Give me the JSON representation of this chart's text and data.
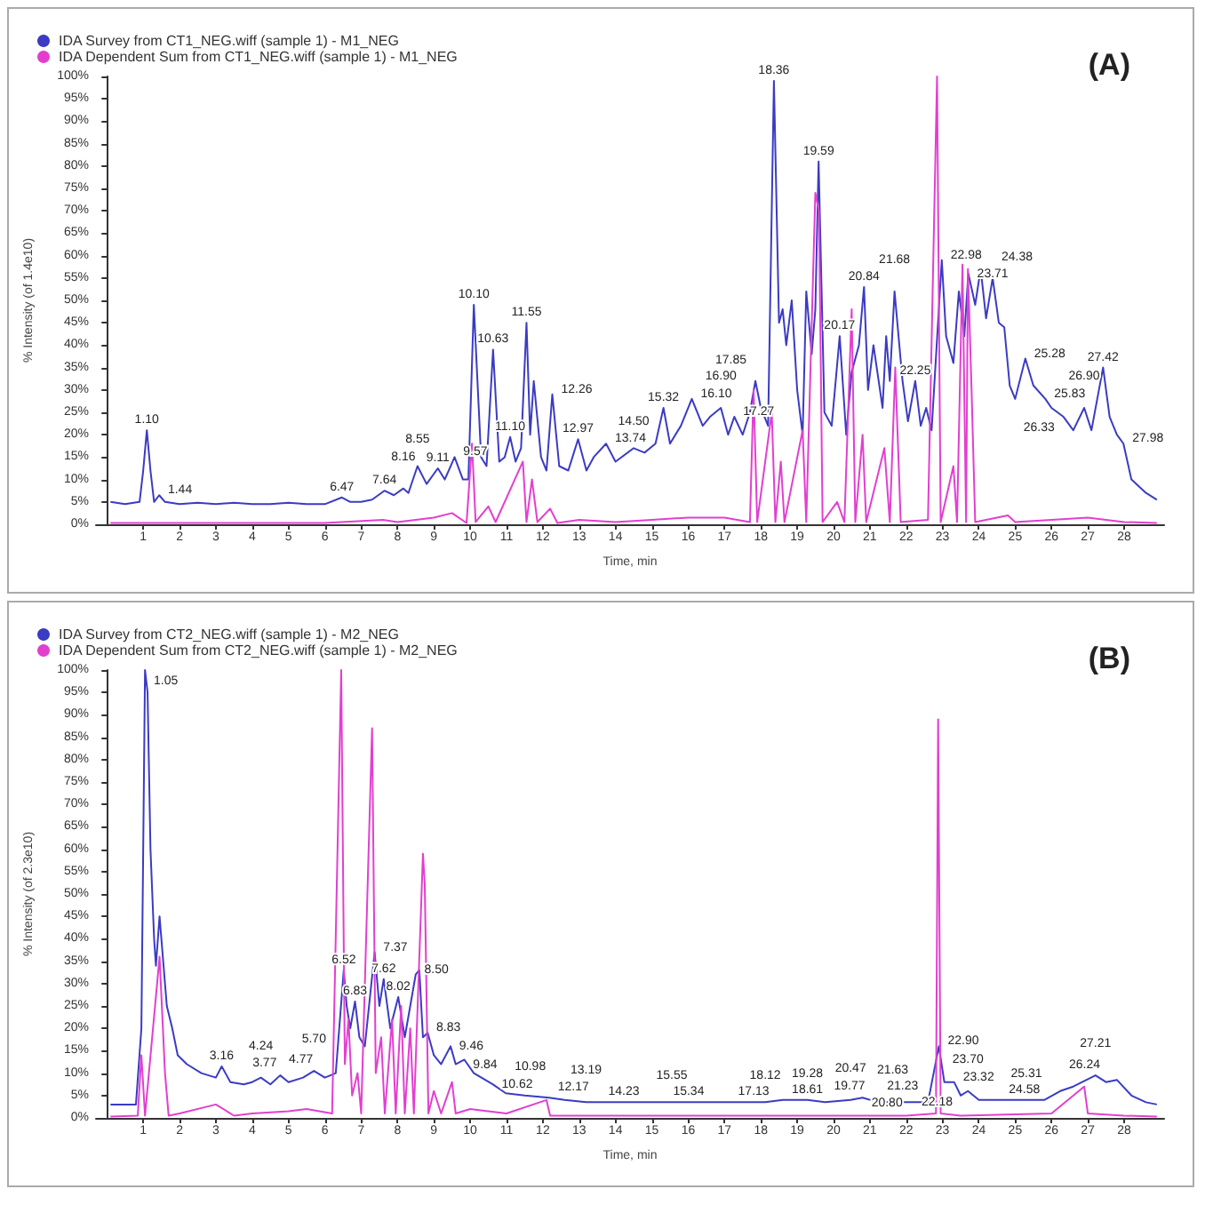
{
  "chart_data": [
    {
      "type": "line",
      "title": "(A)",
      "xlabel": "Time, min",
      "ylabel": "% Intensity (of 1.4e10)",
      "legend": "top left",
      "marker": "none",
      "line_style": "solid",
      "grid": false,
      "xlim": [
        -0.3,
        29.1
      ],
      "xticks": [
        1,
        2,
        3,
        4,
        5,
        6,
        7,
        8,
        9,
        10,
        11,
        12,
        13,
        14,
        15,
        16,
        17,
        18,
        19,
        20,
        21,
        22,
        23,
        24,
        25,
        26,
        27,
        28
      ],
      "ylim": [
        0,
        100
      ],
      "yticks": [
        {
          "value": 0,
          "label": "0%"
        },
        {
          "value": 5,
          "label": "5%"
        },
        {
          "value": 10,
          "label": "10%"
        },
        {
          "value": 15,
          "label": "15%"
        },
        {
          "value": 20,
          "label": "20%"
        },
        {
          "value": 25,
          "label": "25%"
        },
        {
          "value": 30,
          "label": "30%"
        },
        {
          "value": 35,
          "label": "35%"
        },
        {
          "value": 40,
          "label": "40%"
        },
        {
          "value": 45,
          "label": "45%"
        },
        {
          "value": 50,
          "label": "50%"
        },
        {
          "value": 55,
          "label": "55%"
        },
        {
          "value": 60,
          "label": "60%"
        },
        {
          "value": 65,
          "label": "65%"
        },
        {
          "value": 70,
          "label": "70%"
        },
        {
          "value": 75,
          "label": "75%"
        },
        {
          "value": 80,
          "label": "80%"
        },
        {
          "value": 85,
          "label": "85%"
        },
        {
          "value": 90,
          "label": "90%"
        },
        {
          "value": 95,
          "label": "95%"
        },
        {
          "value": 100,
          "label": "100%"
        }
      ],
      "series": [
        {
          "name": "IDA Survey from CT1_NEG.wiff (sample 1) - M1_NEG",
          "color": "#3b3bc4",
          "x": [
            0.1,
            0.5,
            0.9,
            1.0,
            1.1,
            1.2,
            1.3,
            1.44,
            1.6,
            2,
            2.5,
            3,
            3.5,
            4,
            4.5,
            5,
            5.5,
            6,
            6.47,
            6.7,
            7,
            7.3,
            7.64,
            7.9,
            8.16,
            8.3,
            8.55,
            8.8,
            9.11,
            9.3,
            9.57,
            9.8,
            9.95,
            10.1,
            10.3,
            10.45,
            10.63,
            10.8,
            10.95,
            11.1,
            11.25,
            11.4,
            11.55,
            11.65,
            11.75,
            11.95,
            12.1,
            12.26,
            12.45,
            12.7,
            12.97,
            13.2,
            13.4,
            13.74,
            14.0,
            14.5,
            14.8,
            15.1,
            15.32,
            15.5,
            15.8,
            16.1,
            16.4,
            16.6,
            16.9,
            17.1,
            17.27,
            17.5,
            17.7,
            17.85,
            18.0,
            18.2,
            18.36,
            18.5,
            18.6,
            18.7,
            18.85,
            19.0,
            19.15,
            19.25,
            19.4,
            19.5,
            19.59,
            19.75,
            19.95,
            20.17,
            20.35,
            20.5,
            20.7,
            20.84,
            20.95,
            21.1,
            21.35,
            21.45,
            21.55,
            21.68,
            21.9,
            22.05,
            22.25,
            22.4,
            22.55,
            22.7,
            22.98,
            23.1,
            23.3,
            23.45,
            23.6,
            23.71,
            23.9,
            24.05,
            24.2,
            24.38,
            24.55,
            24.7,
            24.85,
            25.0,
            25.28,
            25.5,
            25.83,
            26.0,
            26.33,
            26.6,
            26.9,
            27.1,
            27.42,
            27.6,
            27.8,
            27.98,
            28.2,
            28.6,
            28.9
          ],
          "values": [
            5,
            4.5,
            5,
            12,
            21,
            12,
            5,
            6.5,
            5,
            4.5,
            4.8,
            4.5,
            4.8,
            4.5,
            4.5,
            4.8,
            4.5,
            4.5,
            6,
            5,
            5,
            5.5,
            7.5,
            6.5,
            8,
            7,
            13,
            9,
            12.5,
            10,
            15,
            10,
            10,
            49,
            15,
            13,
            39,
            14,
            15,
            19.5,
            14,
            17,
            45,
            20,
            32,
            15,
            12,
            29,
            13,
            12,
            19,
            12,
            15,
            18,
            14,
            17,
            16,
            18,
            26,
            18,
            22,
            28,
            22,
            24,
            26,
            20,
            24,
            20,
            25,
            32,
            26,
            22,
            99,
            45,
            48,
            40,
            50,
            30,
            20,
            52,
            38,
            48,
            81,
            25,
            22,
            42,
            20,
            34,
            40,
            53,
            30,
            40,
            26,
            42,
            32,
            52,
            32,
            23,
            32,
            22,
            26,
            21,
            59,
            42,
            36,
            52,
            42,
            56,
            49,
            57,
            46,
            55,
            45,
            44,
            31,
            28,
            37,
            31,
            28,
            26,
            24,
            21,
            26,
            21,
            35,
            24,
            20,
            18,
            10,
            7,
            5.5
          ]
        },
        {
          "name": "IDA Dependent Sum from CT1_NEG.wiff (sample 1) - M1_NEG",
          "color": "#e23fd0",
          "x": [
            0.1,
            6,
            7.6,
            8.0,
            9.0,
            9.5,
            9.9,
            10.05,
            10.15,
            10.5,
            10.7,
            11.45,
            11.55,
            11.7,
            11.85,
            12.2,
            12.4,
            13,
            14,
            15,
            16,
            17,
            17.7,
            17.8,
            17.9,
            18.3,
            18.4,
            18.55,
            18.65,
            19.15,
            19.25,
            19.5,
            19.6,
            19.7,
            20.1,
            20.3,
            20.5,
            20.6,
            20.8,
            20.9,
            21.4,
            21.55,
            21.7,
            21.85,
            22.6,
            22.85,
            22.95,
            23.3,
            23.4,
            23.55,
            23.65,
            23.7,
            23.8,
            23.9,
            24.8,
            25,
            26,
            27,
            28,
            28.9
          ],
          "values": [
            0.3,
            0.3,
            1,
            0.5,
            1.5,
            2.5,
            0.3,
            18,
            0.5,
            4,
            0.5,
            14,
            0.5,
            10,
            0.5,
            3.5,
            0.3,
            1,
            0.5,
            1,
            1.5,
            1.5,
            0.5,
            30,
            0.5,
            25,
            0.5,
            14,
            0.5,
            21,
            0.5,
            74,
            70,
            0.5,
            5,
            0.5,
            48,
            0.5,
            20,
            0.5,
            17,
            0.5,
            35,
            0.5,
            1,
            100,
            0.5,
            13,
            0.5,
            58,
            0.5,
            57,
            30,
            0.5,
            2,
            0.5,
            1,
            1.5,
            0.5,
            0.3
          ]
        }
      ],
      "annotations": [
        {
          "text": "1.10",
          "x": 1.1,
          "y": 21
        },
        {
          "text": "1.44",
          "x": 1.44,
          "y": 6.5
        },
        {
          "text": "6.47",
          "x": 6.47,
          "y": 6
        },
        {
          "text": "7.64",
          "x": 7.64,
          "y": 7.5
        },
        {
          "text": "8.16",
          "x": 8.16,
          "y": 8
        },
        {
          "text": "8.55",
          "x": 8.55,
          "y": 13
        },
        {
          "text": "9.11",
          "x": 9.11,
          "y": 12.5
        },
        {
          "text": "9.57",
          "x": 9.57,
          "y": 15
        },
        {
          "text": "10.10",
          "x": 10.1,
          "y": 49
        },
        {
          "text": "10.63",
          "x": 10.63,
          "y": 39
        },
        {
          "text": "11.10",
          "x": 11.1,
          "y": 19.5
        },
        {
          "text": "11.55",
          "x": 11.55,
          "y": 45
        },
        {
          "text": "12.26",
          "x": 12.26,
          "y": 29
        },
        {
          "text": "12.97",
          "x": 12.97,
          "y": 19
        },
        {
          "text": "13.74",
          "x": 13.74,
          "y": 18
        },
        {
          "text": "14.50",
          "x": 14.5,
          "y": 17
        },
        {
          "text": "15.32",
          "x": 15.32,
          "y": 26
        },
        {
          "text": "16.10",
          "x": 16.1,
          "y": 28
        },
        {
          "text": "16.90",
          "x": 16.9,
          "y": 26
        },
        {
          "text": "17.27",
          "x": 17.27,
          "y": 24
        },
        {
          "text": "17.85",
          "x": 17.85,
          "y": 32
        },
        {
          "text": "18.36",
          "x": 18.36,
          "y": 99
        },
        {
          "text": "19.59",
          "x": 19.59,
          "y": 81
        },
        {
          "text": "20.17",
          "x": 20.17,
          "y": 42
        },
        {
          "text": "20.84",
          "x": 20.84,
          "y": 53
        },
        {
          "text": "21.68",
          "x": 21.68,
          "y": 52
        },
        {
          "text": "22.25",
          "x": 22.25,
          "y": 32
        },
        {
          "text": "22.98",
          "x": 22.98,
          "y": 59
        },
        {
          "text": "23.71",
          "x": 23.71,
          "y": 56
        },
        {
          "text": "24.38",
          "x": 24.38,
          "y": 55
        },
        {
          "text": "25.28",
          "x": 25.28,
          "y": 37
        },
        {
          "text": "25.83",
          "x": 25.83,
          "y": 28
        },
        {
          "text": "26.33",
          "x": 26.33,
          "y": 24
        },
        {
          "text": "26.90",
          "x": 26.9,
          "y": 26
        },
        {
          "text": "27.42",
          "x": 27.42,
          "y": 35
        },
        {
          "text": "27.98",
          "x": 27.98,
          "y": 18
        }
      ]
    },
    {
      "type": "line",
      "title": "(B)",
      "xlabel": "Time, min",
      "ylabel": "% Intensity (of 2.3e10)",
      "legend": "top left",
      "marker": "none",
      "line_style": "solid",
      "grid": false,
      "xlim": [
        -0.3,
        29.1
      ],
      "xticks": [
        1,
        2,
        3,
        4,
        5,
        6,
        7,
        8,
        9,
        10,
        11,
        12,
        13,
        14,
        15,
        16,
        17,
        18,
        19,
        20,
        21,
        22,
        23,
        24,
        25,
        26,
        27,
        28
      ],
      "ylim": [
        0,
        100
      ],
      "yticks": [
        {
          "value": 0,
          "label": "0%"
        },
        {
          "value": 5,
          "label": "5%"
        },
        {
          "value": 10,
          "label": "10%"
        },
        {
          "value": 15,
          "label": "15%"
        },
        {
          "value": 20,
          "label": "20%"
        },
        {
          "value": 25,
          "label": "25%"
        },
        {
          "value": 30,
          "label": "30%"
        },
        {
          "value": 35,
          "label": "35%"
        },
        {
          "value": 40,
          "label": "40%"
        },
        {
          "value": 45,
          "label": "45%"
        },
        {
          "value": 50,
          "label": "50%"
        },
        {
          "value": 55,
          "label": "55%"
        },
        {
          "value": 60,
          "label": "60%"
        },
        {
          "value": 65,
          "label": "65%"
        },
        {
          "value": 70,
          "label": "70%"
        },
        {
          "value": 75,
          "label": "75%"
        },
        {
          "value": 80,
          "label": "80%"
        },
        {
          "value": 85,
          "label": "85%"
        },
        {
          "value": 90,
          "label": "90%"
        },
        {
          "value": 95,
          "label": "95%"
        },
        {
          "value": 100,
          "label": "100%"
        }
      ],
      "series": [
        {
          "name": "IDA Survey from CT2_NEG.wiff (sample 1) - M2_NEG",
          "color": "#3b3bc4",
          "x": [
            0.1,
            0.8,
            0.95,
            1.05,
            1.12,
            1.2,
            1.3,
            1.35,
            1.45,
            1.55,
            1.65,
            1.8,
            1.95,
            2.2,
            2.6,
            3.0,
            3.16,
            3.4,
            3.77,
            4.0,
            4.24,
            4.5,
            4.77,
            5.0,
            5.4,
            5.7,
            6.0,
            6.3,
            6.52,
            6.6,
            6.7,
            6.83,
            6.95,
            7.1,
            7.37,
            7.5,
            7.62,
            7.8,
            8.02,
            8.2,
            8.35,
            8.5,
            8.6,
            8.7,
            8.83,
            9.0,
            9.2,
            9.46,
            9.6,
            9.84,
            10.1,
            10.62,
            10.98,
            11.5,
            12.17,
            12.6,
            13.19,
            14.23,
            15.34,
            15.55,
            16,
            17.13,
            18.12,
            18.61,
            19.28,
            19.77,
            20.47,
            20.8,
            21.23,
            21.63,
            22.18,
            22.6,
            22.9,
            23.05,
            23.32,
            23.5,
            23.7,
            24.0,
            24.58,
            25.31,
            25.8,
            26.24,
            26.6,
            27.21,
            27.5,
            27.8,
            28.2,
            28.6,
            28.9
          ],
          "values": [
            3,
            3,
            20,
            100,
            95,
            60,
            40,
            34,
            45,
            35,
            25,
            20,
            14,
            12,
            10,
            9,
            11.5,
            8,
            7.5,
            8,
            9,
            7.5,
            9.5,
            8,
            9,
            10.5,
            9,
            10,
            33,
            25,
            20,
            26,
            18,
            16,
            37,
            25,
            31,
            20,
            27,
            18,
            25,
            32,
            33,
            18,
            19,
            14,
            12,
            16,
            12,
            13,
            10,
            7.5,
            5.5,
            5,
            4.5,
            4,
            3.5,
            3.5,
            3.5,
            3.5,
            3.5,
            3.5,
            3.5,
            4,
            4,
            3.5,
            4,
            4.5,
            3.5,
            3.5,
            3.5,
            3.5,
            16,
            8,
            8,
            5,
            6,
            4,
            4,
            4,
            4,
            6,
            7,
            9.5,
            8,
            8.5,
            5,
            3.5,
            3
          ]
        },
        {
          "name": "IDA Dependent Sum from CT2_NEG.wiff (sample 1) - M2_NEG",
          "color": "#e23fd0",
          "x": [
            0.1,
            0.85,
            0.95,
            1.05,
            1.45,
            1.6,
            1.7,
            2,
            3,
            3.5,
            4,
            5,
            5.5,
            6.2,
            6.45,
            6.55,
            6.65,
            6.75,
            6.9,
            7.0,
            7.3,
            7.4,
            7.55,
            7.65,
            7.85,
            7.95,
            8.1,
            8.2,
            8.35,
            8.45,
            8.7,
            8.75,
            8.85,
            9.0,
            9.2,
            9.5,
            9.6,
            10,
            11,
            12.1,
            12.2,
            13,
            14,
            16,
            18,
            20,
            22,
            22.82,
            22.88,
            22.95,
            23.5,
            26,
            26.9,
            27.0,
            28,
            28.9
          ],
          "values": [
            0.3,
            0.5,
            14,
            0.5,
            36,
            10,
            0.5,
            1,
            3,
            0.5,
            1,
            1.5,
            2,
            1,
            100,
            12,
            22,
            5,
            10,
            1,
            87,
            10,
            18,
            1,
            22,
            1,
            25,
            1,
            20,
            1,
            59,
            52,
            1,
            6,
            1,
            8,
            1,
            2,
            1,
            4,
            0.5,
            0.5,
            0.5,
            0.5,
            0.5,
            0.5,
            0.5,
            1,
            89,
            1,
            0.5,
            1,
            7,
            1,
            0.5,
            0.3
          ]
        }
      ],
      "annotations": [
        {
          "text": "1.05",
          "x": 1.05,
          "y": 100
        },
        {
          "text": "3.16",
          "x": 3.16,
          "y": 11.5
        },
        {
          "text": "3.77",
          "x": 3.77,
          "y": 7.5
        },
        {
          "text": "4.24",
          "x": 4.24,
          "y": 9
        },
        {
          "text": "4.77",
          "x": 4.77,
          "y": 9.5
        },
        {
          "text": "5.70",
          "x": 5.7,
          "y": 10.5
        },
        {
          "text": "6.52",
          "x": 6.52,
          "y": 33
        },
        {
          "text": "6.83",
          "x": 6.83,
          "y": 26
        },
        {
          "text": "7.37",
          "x": 7.37,
          "y": 37
        },
        {
          "text": "7.62",
          "x": 7.62,
          "y": 31
        },
        {
          "text": "8.02",
          "x": 8.02,
          "y": 27
        },
        {
          "text": "8.50",
          "x": 8.5,
          "y": 32
        },
        {
          "text": "8.83",
          "x": 8.83,
          "y": 19
        },
        {
          "text": "9.46",
          "x": 9.46,
          "y": 16
        },
        {
          "text": "9.84",
          "x": 9.84,
          "y": 13
        },
        {
          "text": "10.62",
          "x": 10.62,
          "y": 7.5
        },
        {
          "text": "10.98",
          "x": 10.98,
          "y": 5.5
        },
        {
          "text": "12.17",
          "x": 12.17,
          "y": 4.5
        },
        {
          "text": "13.19",
          "x": 13.19,
          "y": 3.5
        },
        {
          "text": "14.23",
          "x": 14.23,
          "y": 3.5
        },
        {
          "text": "15.34",
          "x": 15.34,
          "y": 3.5
        },
        {
          "text": "15.55",
          "x": 15.55,
          "y": 3.5
        },
        {
          "text": "17.13",
          "x": 17.13,
          "y": 3.5
        },
        {
          "text": "18.12",
          "x": 18.12,
          "y": 3.5
        },
        {
          "text": "18.61",
          "x": 18.61,
          "y": 4
        },
        {
          "text": "19.28",
          "x": 19.28,
          "y": 4
        },
        {
          "text": "19.77",
          "x": 19.77,
          "y": 3.5
        },
        {
          "text": "20.47",
          "x": 20.47,
          "y": 4
        },
        {
          "text": "20.80",
          "x": 20.8,
          "y": 4.5
        },
        {
          "text": "21.23",
          "x": 21.23,
          "y": 3.5
        },
        {
          "text": "21.63",
          "x": 21.63,
          "y": 3.5
        },
        {
          "text": "22.18",
          "x": 22.18,
          "y": 3.5
        },
        {
          "text": "22.90",
          "x": 22.9,
          "y": 16
        },
        {
          "text": "23.32",
          "x": 23.32,
          "y": 8
        },
        {
          "text": "23.70",
          "x": 23.7,
          "y": 6
        },
        {
          "text": "24.58",
          "x": 24.58,
          "y": 4
        },
        {
          "text": "25.31",
          "x": 25.31,
          "y": 4
        },
        {
          "text": "26.24",
          "x": 26.24,
          "y": 6
        },
        {
          "text": "27.21",
          "x": 27.21,
          "y": 9.5
        }
      ]
    }
  ]
}
